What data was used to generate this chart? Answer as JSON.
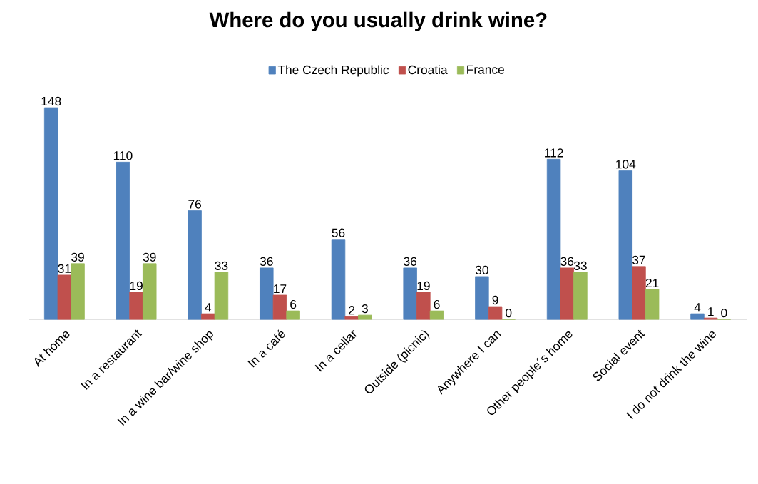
{
  "chart_data": {
    "type": "bar",
    "title": "Where do you usually drink wine?",
    "categories": [
      "At home",
      "In a restaurant",
      "In a wine bar/wine shop",
      "In a café",
      "In a cellar",
      "Outside (picnic)",
      "Anywhere I can",
      "Other people´s home",
      "Social event",
      "I do not drink the wine"
    ],
    "series": [
      {
        "name": "The Czech Republic",
        "color": "#4f81bd",
        "values": [
          148,
          110,
          76,
          36,
          56,
          36,
          30,
          112,
          104,
          4
        ]
      },
      {
        "name": "Croatia",
        "color": "#c0504d",
        "values": [
          31,
          19,
          4,
          17,
          2,
          19,
          9,
          36,
          37,
          1
        ]
      },
      {
        "name": "France",
        "color": "#9bbb59",
        "values": [
          39,
          39,
          33,
          6,
          3,
          6,
          0,
          33,
          21,
          0
        ]
      }
    ],
    "data_labels": true,
    "legend": "top"
  }
}
